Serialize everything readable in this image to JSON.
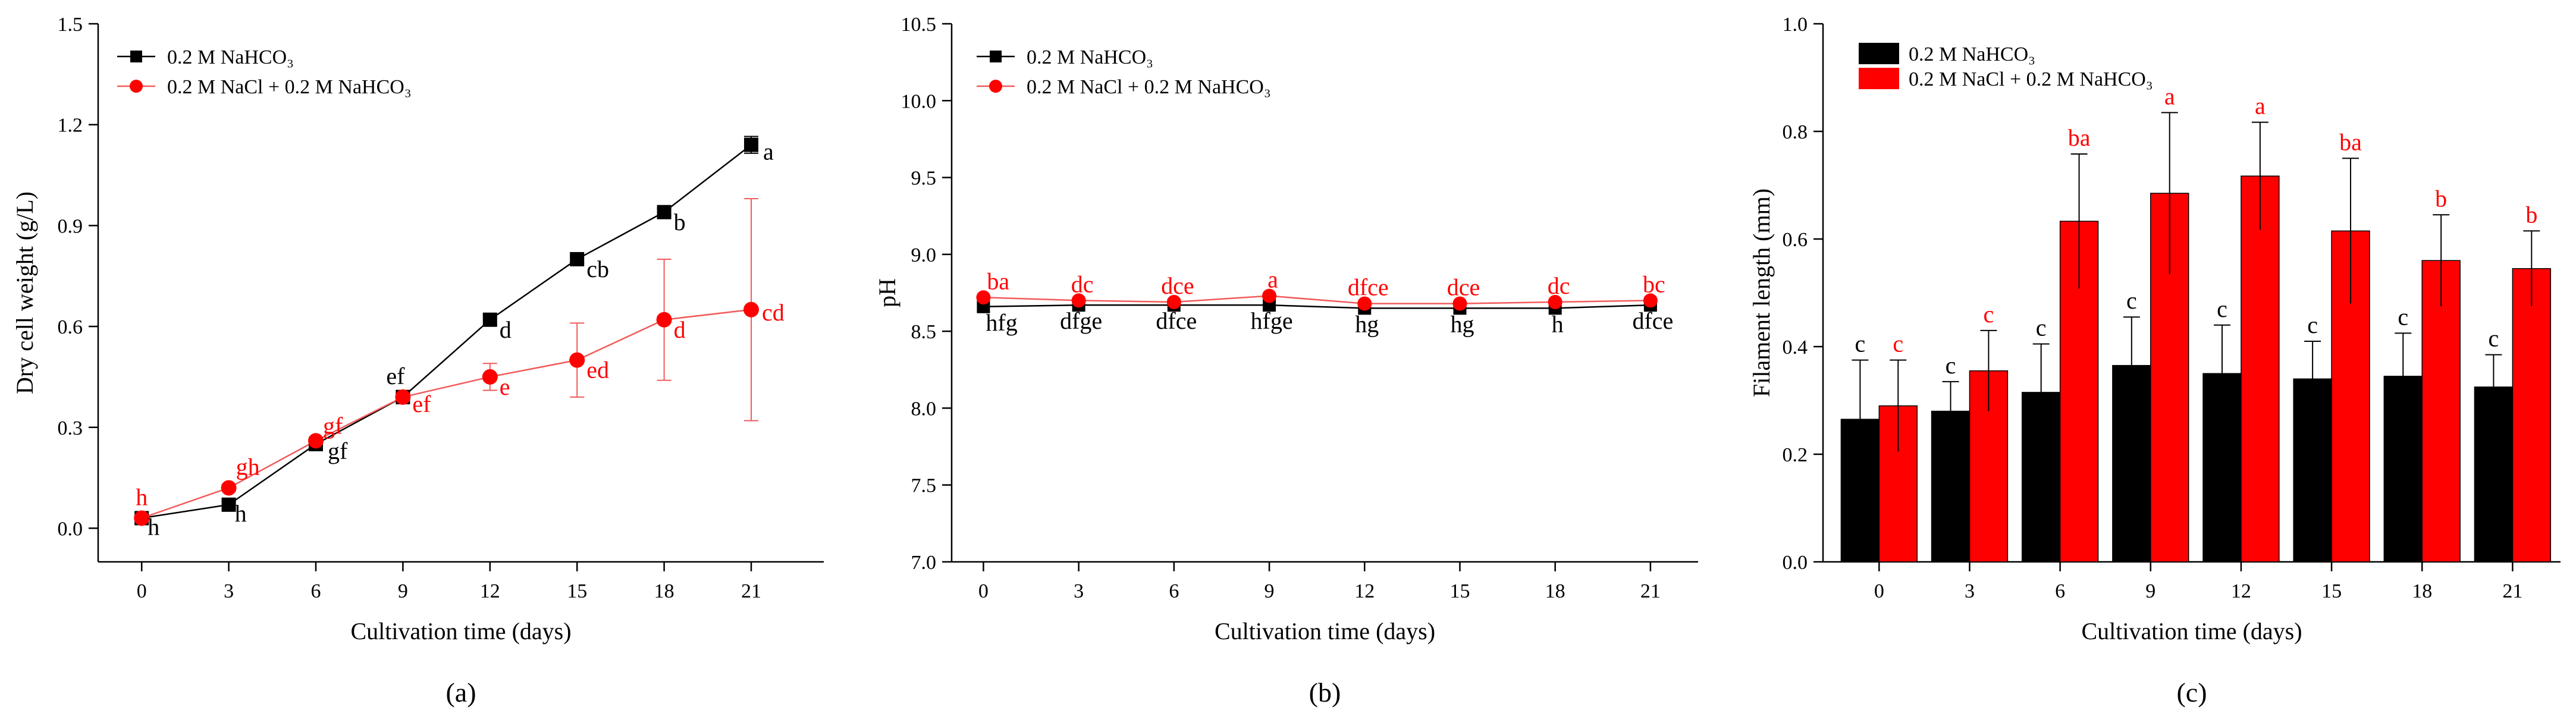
{
  "colors": {
    "black": "#000000",
    "red": "#ff0000",
    "line_red": "#f25a5a"
  },
  "legend": {
    "series_a": "0.2 M NaHCO₃",
    "series_b": "0.2 M NaCl + 0.2 M NaHCO₃"
  },
  "chart_data": [
    {
      "id": "a",
      "type": "line",
      "caption": "(a)",
      "xlabel": "Cultivation time (days)",
      "ylabel": "Dry cell weight (g/L)",
      "x": [
        0,
        3,
        6,
        9,
        12,
        15,
        18,
        21
      ],
      "xlim": [
        -1.5,
        23.5
      ],
      "xticks": [
        0,
        3,
        6,
        9,
        12,
        15,
        18,
        21
      ],
      "ylim": [
        -0.1,
        1.5
      ],
      "yticks": [
        0.0,
        0.3,
        0.6,
        0.9,
        1.2,
        1.5
      ],
      "ytick_labels": [
        "0.0",
        "0.3",
        "0.6",
        "0.9",
        "1.2",
        "1.5"
      ],
      "legend_position": "top-left",
      "series": [
        {
          "name": "0.2 M NaHCO₃",
          "color": "#000000",
          "marker": "square",
          "values": [
            0.03,
            0.07,
            0.25,
            0.39,
            0.62,
            0.8,
            0.94,
            1.14
          ],
          "errors": [
            0.01,
            0.01,
            0.01,
            0.01,
            0.015,
            0.01,
            0.01,
            0.025
          ],
          "labels": [
            "h",
            "h",
            "gf",
            "ef",
            "d",
            "cb",
            "b",
            "a"
          ]
        },
        {
          "name": "0.2 M NaCl + 0.2 M NaHCO₃",
          "color": "#ff0000",
          "marker": "circle",
          "values": [
            0.03,
            0.12,
            0.26,
            0.39,
            0.45,
            0.5,
            0.62,
            0.65
          ],
          "errors": [
            0.01,
            0.01,
            0.01,
            0.02,
            0.04,
            0.11,
            0.18,
            0.33
          ],
          "labels": [
            "h",
            "gh",
            "gf",
            "ef",
            "e",
            "ed",
            "d",
            "cd"
          ]
        }
      ]
    },
    {
      "id": "b",
      "type": "line",
      "caption": "(b)",
      "xlabel": "Cultivation time (days)",
      "ylabel": "pH",
      "x": [
        0,
        3,
        6,
        9,
        12,
        15,
        18,
        21
      ],
      "xlim": [
        -1,
        22.5
      ],
      "xticks": [
        0,
        3,
        6,
        9,
        12,
        15,
        18,
        21
      ],
      "ylim": [
        7.0,
        10.5
      ],
      "yticks": [
        7.0,
        7.5,
        8.0,
        8.5,
        9.0,
        9.5,
        10.0,
        10.5
      ],
      "ytick_labels": [
        "7.0",
        "7.5",
        "8.0",
        "8.5",
        "9.0",
        "9.5",
        "10.0",
        "10.5"
      ],
      "legend_position": "top-left",
      "series": [
        {
          "name": "0.2 M NaHCO₃",
          "color": "#000000",
          "marker": "square",
          "values": [
            8.66,
            8.67,
            8.67,
            8.67,
            8.65,
            8.65,
            8.65,
            8.67
          ],
          "labels": [
            "hfg",
            "dfge",
            "dfce",
            "hfge",
            "hg",
            "hg",
            "h",
            "dfce"
          ]
        },
        {
          "name": "0.2 M NaCl + 0.2 M NaHCO₃",
          "color": "#ff0000",
          "marker": "circle",
          "values": [
            8.72,
            8.7,
            8.69,
            8.73,
            8.68,
            8.68,
            8.69,
            8.7
          ],
          "labels": [
            "ba",
            "dc",
            "dce",
            "a",
            "dfce",
            "dce",
            "dc",
            "bc"
          ]
        }
      ]
    },
    {
      "id": "c",
      "type": "bar",
      "caption": "(c)",
      "xlabel": "Cultivation time (days)",
      "ylabel": "Filament length (mm)",
      "categories": [
        "0",
        "3",
        "6",
        "9",
        "12",
        "15",
        "18",
        "21"
      ],
      "ylim": [
        0.0,
        1.0
      ],
      "yticks": [
        0.0,
        0.2,
        0.4,
        0.6,
        0.8,
        1.0
      ],
      "ytick_labels": [
        "0.0",
        "0.2",
        "0.4",
        "0.6",
        "0.8",
        "1.0"
      ],
      "legend_position": "top-left",
      "series": [
        {
          "name": "0.2 M NaHCO₃",
          "color": "#000000",
          "values": [
            0.265,
            0.28,
            0.315,
            0.365,
            0.35,
            0.34,
            0.345,
            0.325
          ],
          "errors": [
            0.11,
            0.055,
            0.09,
            0.09,
            0.09,
            0.07,
            0.08,
            0.06
          ],
          "labels": [
            "c",
            "c",
            "c",
            "c",
            "c",
            "c",
            "c",
            "c"
          ]
        },
        {
          "name": "0.2 M NaCl + 0.2 M NaHCO₃",
          "color": "#ff0000",
          "values": [
            0.29,
            0.355,
            0.633,
            0.685,
            0.717,
            0.615,
            0.56,
            0.545
          ],
          "errors": [
            0.085,
            0.075,
            0.125,
            0.15,
            0.1,
            0.135,
            0.085,
            0.07
          ],
          "labels": [
            "c",
            "c",
            "ba",
            "a",
            "a",
            "ba",
            "b",
            "b"
          ]
        }
      ]
    }
  ]
}
